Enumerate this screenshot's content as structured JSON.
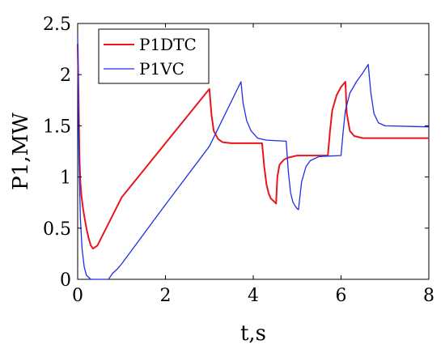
{
  "chart_data": {
    "type": "line",
    "title": "",
    "xlabel": "t,s",
    "ylabel": "P1,MW",
    "xlim": [
      0,
      8
    ],
    "ylim": [
      0,
      2.5
    ],
    "xticks": [
      0,
      2,
      4,
      6,
      8
    ],
    "xtick_labels": [
      "0",
      "2",
      "4",
      "6",
      "8"
    ],
    "yticks": [
      0,
      0.5,
      1,
      1.5,
      2,
      2.5
    ],
    "ytick_labels": [
      "0",
      "0.5",
      "1",
      "1.5",
      "2",
      "2.5"
    ],
    "grid": false,
    "legend_position": "top-left",
    "series": [
      {
        "name": "P1DTC",
        "color": "#e8161b",
        "x": [
          0,
          0.02,
          0.04,
          0.06,
          0.09,
          0.12,
          0.15,
          0.2,
          0.25,
          0.3,
          0.35,
          0.45,
          1.0,
          2.0,
          3.0,
          3.05,
          3.1,
          3.2,
          3.3,
          3.5,
          4.2,
          4.25,
          4.3,
          4.35,
          4.4,
          4.5,
          4.52,
          4.55,
          4.6,
          4.7,
          4.8,
          5.0,
          5.7,
          5.75,
          5.8,
          5.9,
          6.0,
          6.1,
          6.13,
          6.2,
          6.3,
          6.5,
          8.0
        ],
        "y": [
          2.3,
          1.8,
          1.2,
          0.95,
          0.8,
          0.7,
          0.62,
          0.5,
          0.4,
          0.33,
          0.3,
          0.33,
          0.8,
          1.33,
          1.86,
          1.6,
          1.45,
          1.37,
          1.34,
          1.33,
          1.33,
          1.1,
          0.93,
          0.84,
          0.79,
          0.75,
          0.74,
          1.0,
          1.12,
          1.17,
          1.19,
          1.21,
          1.21,
          1.45,
          1.65,
          1.8,
          1.88,
          1.93,
          1.62,
          1.45,
          1.4,
          1.38,
          1.38
        ]
      },
      {
        "name": "P1VC",
        "color": "#1f2ee8",
        "x": [
          0,
          0.03,
          0.06,
          0.1,
          0.15,
          0.2,
          0.3,
          0.4,
          0.5,
          0.6,
          0.65,
          0.7,
          0.8,
          0.9,
          1.0,
          2.0,
          3.0,
          3.72,
          3.77,
          3.85,
          3.95,
          4.1,
          4.3,
          4.75,
          4.8,
          4.85,
          4.9,
          4.95,
          5.0,
          5.03,
          5.1,
          5.2,
          5.3,
          5.5,
          6.0,
          6.05,
          6.1,
          6.2,
          6.35,
          6.5,
          6.62,
          6.68,
          6.75,
          6.85,
          7.0,
          8.0
        ],
        "y": [
          2.38,
          1.2,
          0.6,
          0.3,
          0.12,
          0.04,
          0.0,
          0.0,
          0.0,
          0.0,
          0.0,
          0.0,
          0.06,
          0.1,
          0.15,
          0.73,
          1.3,
          1.93,
          1.72,
          1.55,
          1.45,
          1.38,
          1.36,
          1.35,
          1.05,
          0.85,
          0.76,
          0.72,
          0.69,
          0.68,
          0.95,
          1.1,
          1.16,
          1.2,
          1.21,
          1.45,
          1.65,
          1.82,
          1.93,
          2.02,
          2.1,
          1.82,
          1.62,
          1.53,
          1.5,
          1.49
        ]
      }
    ]
  }
}
